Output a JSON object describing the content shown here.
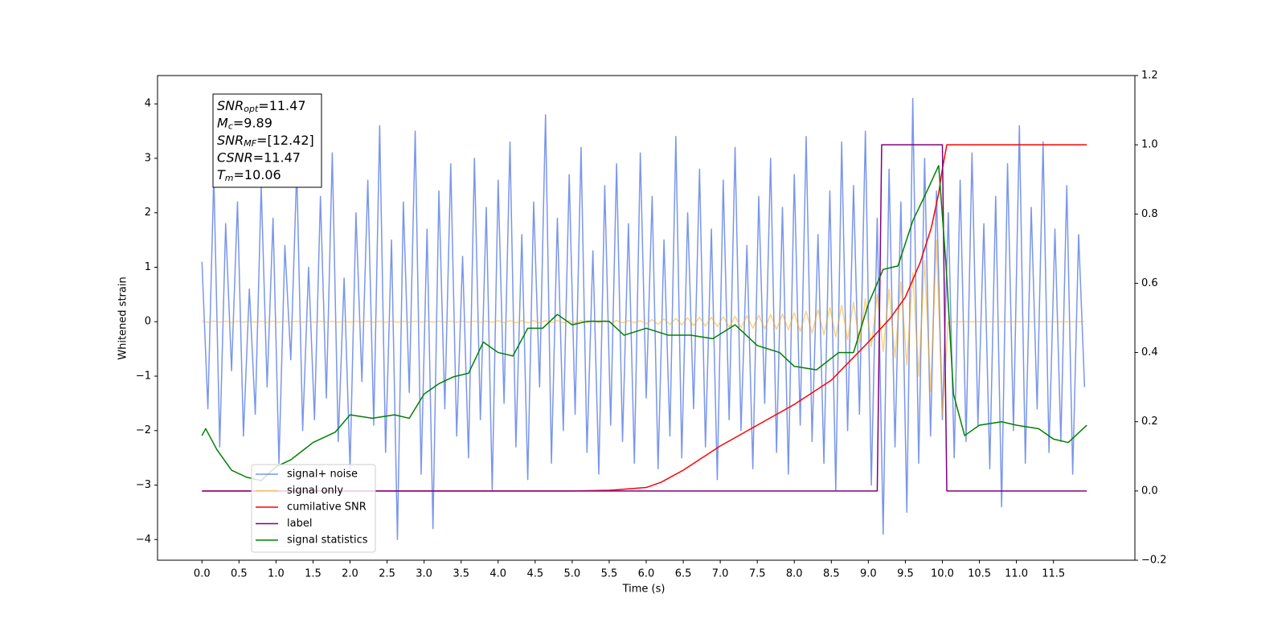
{
  "chart_data": {
    "type": "line",
    "xlabel": "Time (s)",
    "ylabel": "Whitened strain",
    "xlim": [
      -0.6,
      12.6
    ],
    "ylim": [
      -4.38,
      4.52
    ],
    "y2lim": [
      -0.2,
      1.2
    ],
    "xticks": [
      {
        "value": 0,
        "label": "0.0"
      },
      0.5,
      {
        "value": 1,
        "label": "1.0"
      },
      1.5,
      {
        "value": 2,
        "label": "2.0"
      },
      2.5,
      {
        "value": 3,
        "label": "3.0"
      },
      3.5,
      {
        "value": 4,
        "label": "4.0"
      },
      4.5,
      {
        "value": 5,
        "label": "5.0"
      },
      5.5,
      {
        "value": 6,
        "label": "6.0"
      },
      6.5,
      {
        "value": 7,
        "label": "7.0"
      },
      7.5,
      {
        "value": 8,
        "label": "8.0"
      },
      8.5,
      {
        "value": 9,
        "label": "9.0"
      },
      9.5,
      {
        "value": 10,
        "label": "10.0"
      },
      10.5,
      {
        "value": 11,
        "label": "11.0"
      },
      11.5
    ],
    "yticks": [
      {
        "value": -4,
        "label": "−4"
      },
      {
        "value": -3,
        "label": "−3"
      },
      {
        "value": -2,
        "label": "−2"
      },
      {
        "value": -1,
        "label": "−1"
      },
      0,
      1,
      2,
      3,
      4
    ],
    "y2ticks": [
      {
        "value": -0.2,
        "label": "−0.2"
      },
      {
        "value": 0,
        "label": "0.0"
      },
      0.2,
      0.4,
      0.6,
      0.8,
      {
        "value": 1,
        "label": "1.0"
      },
      1.2
    ],
    "legend": "lower left",
    "annotation": [
      {
        "main": "SNR",
        "sub": "opt",
        "text": "=11.47"
      },
      {
        "main": "M",
        "sub": "c",
        "text": "=9.89"
      },
      {
        "main": "SNR",
        "sub": "MF",
        "text": "=[12.42]"
      },
      {
        "main": "CSNR",
        "text": "=11.47"
      },
      {
        "main": "T",
        "sub": "m",
        "text": "=10.06"
      }
    ],
    "x": [
      0,
      0.08,
      0.16,
      0.24,
      0.32,
      0.4,
      0.48,
      0.56,
      0.64,
      0.72,
      0.8,
      0.88,
      0.96,
      1.04,
      1.12,
      1.2,
      1.28,
      1.36,
      1.44,
      1.52,
      1.6,
      1.68,
      1.76,
      1.84,
      1.92,
      2,
      2.08,
      2.16,
      2.24,
      2.32,
      2.4,
      2.48,
      2.56,
      2.64,
      2.72,
      2.8,
      2.88,
      2.96,
      3.04,
      3.12,
      3.2,
      3.28,
      3.36,
      3.44,
      3.52,
      3.6,
      3.68,
      3.76,
      3.84,
      3.92,
      4,
      4.08,
      4.16,
      4.24,
      4.32,
      4.4,
      4.48,
      4.56,
      4.64,
      4.72,
      4.8,
      4.88,
      4.96,
      5.04,
      5.12,
      5.2,
      5.28,
      5.36,
      5.44,
      5.52,
      5.6,
      5.68,
      5.76,
      5.84,
      5.92,
      6,
      6.08,
      6.16,
      6.24,
      6.32,
      6.4,
      6.48,
      6.56,
      6.64,
      6.72,
      6.8,
      6.88,
      6.96,
      7.04,
      7.12,
      7.2,
      7.28,
      7.36,
      7.44,
      7.52,
      7.6,
      7.68,
      7.76,
      7.84,
      7.92,
      8,
      8.08,
      8.16,
      8.24,
      8.32,
      8.4,
      8.48,
      8.56,
      8.64,
      8.72,
      8.8,
      8.88,
      8.96,
      9.04,
      9.12,
      9.2,
      9.28,
      9.36,
      9.44,
      9.52,
      9.6,
      9.68,
      9.76,
      9.84,
      9.92,
      10,
      10.08,
      10.16,
      10.24,
      10.32,
      10.4,
      10.48,
      10.56,
      10.64,
      10.72,
      10.8,
      10.88,
      10.96,
      11.04,
      11.12,
      11.2,
      11.28,
      11.36,
      11.44,
      11.52,
      11.6,
      11.68,
      11.76,
      11.84,
      11.92
    ],
    "series": [
      {
        "name": "signal+ noise",
        "color": "#4169e1",
        "opacity": 0.7,
        "values": [
          1.1,
          -1.6,
          2.7,
          -2.3,
          1.8,
          -0.9,
          2.2,
          -2.1,
          0.6,
          -1.7,
          2.5,
          -1.2,
          1.9,
          -2.6,
          1.4,
          -0.7,
          2.8,
          -2.0,
          1.0,
          -1.8,
          2.3,
          -1.4,
          3.1,
          -2.2,
          0.8,
          -2.7,
          2.0,
          -1.1,
          2.6,
          -1.9,
          3.6,
          -2.4,
          1.5,
          -4.0,
          2.2,
          -1.3,
          3.5,
          -2.8,
          1.7,
          -3.8,
          2.4,
          -1.6,
          2.9,
          -2.1,
          1.2,
          -2.5,
          3.0,
          -1.8,
          2.1,
          -3.1,
          2.6,
          -1.5,
          3.3,
          -2.3,
          1.6,
          -2.9,
          2.2,
          -1.2,
          3.8,
          -2.6,
          1.9,
          -2.0,
          2.7,
          -1.7,
          3.2,
          -2.4,
          1.3,
          -2.8,
          2.5,
          -1.9,
          2.9,
          -2.2,
          1.8,
          -2.6,
          3.1,
          -1.4,
          2.3,
          -2.7,
          1.5,
          -2.1,
          3.4,
          -2.5,
          2.0,
          -1.6,
          2.8,
          -2.3,
          1.7,
          -2.9,
          2.6,
          -1.8,
          3.2,
          -2.0,
          1.4,
          -2.7,
          2.3,
          -1.5,
          3.0,
          -2.4,
          2.1,
          -2.8,
          2.7,
          -1.9,
          3.4,
          -2.2,
          1.6,
          -2.6,
          2.4,
          -3.1,
          3.3,
          -2.0,
          2.5,
          -1.7,
          3.5,
          -3.0,
          1.9,
          -3.9,
          2.8,
          -2.3,
          2.2,
          -3.5,
          4.1,
          -2.6,
          3.0,
          -2.1,
          2.4,
          -1.8,
          2.0,
          -2.5,
          2.6,
          -2.2,
          3.1,
          -1.9,
          1.8,
          -2.7,
          2.3,
          -3.4,
          2.9,
          -2.0,
          3.6,
          -2.6,
          2.1,
          -1.6,
          3.3,
          -2.4,
          1.7,
          -2.2,
          2.5,
          -2.8,
          1.6,
          -1.2
        ]
      },
      {
        "name": "signal only",
        "color": "#ffa500",
        "opacity": 0.5,
        "values": [
          0.01,
          -0.01,
          0.01,
          -0.01,
          0.01,
          -0.01,
          0.01,
          -0.01,
          0.01,
          -0.01,
          0.01,
          -0.01,
          0.01,
          -0.01,
          0.01,
          -0.01,
          0.01,
          -0.01,
          0.01,
          -0.01,
          0.01,
          -0.01,
          0.01,
          -0.01,
          0.01,
          -0.01,
          0.01,
          -0.01,
          0.01,
          -0.01,
          0.01,
          -0.01,
          0.01,
          -0.01,
          0.01,
          -0.01,
          0.01,
          -0.01,
          0.01,
          -0.01,
          0.01,
          -0.01,
          0.01,
          -0.01,
          0.01,
          -0.01,
          0.01,
          -0.01,
          0.01,
          -0.01,
          0.02,
          -0.02,
          0.02,
          -0.02,
          0.02,
          -0.02,
          0.02,
          -0.02,
          0.02,
          -0.02,
          0.02,
          -0.02,
          0.02,
          -0.02,
          0.02,
          -0.02,
          0.02,
          -0.02,
          0.02,
          -0.02,
          0.02,
          -0.02,
          0.02,
          -0.02,
          0.02,
          -0.04,
          0.04,
          -0.05,
          0.05,
          -0.05,
          0.06,
          -0.06,
          0.07,
          -0.07,
          0.08,
          -0.08,
          0.08,
          -0.09,
          0.09,
          -0.1,
          0.1,
          -0.11,
          0.11,
          -0.12,
          0.12,
          -0.13,
          0.13,
          -0.14,
          0.14,
          -0.15,
          0.16,
          -0.18,
          0.19,
          -0.21,
          0.22,
          -0.24,
          0.26,
          -0.28,
          0.3,
          -0.33,
          0.36,
          -0.39,
          0.42,
          -0.46,
          0.5,
          -0.55,
          0.6,
          -0.66,
          0.73,
          -0.8,
          0.9,
          -1.0,
          1.12,
          -1.28,
          1.5,
          -1.7,
          0,
          0,
          0,
          0,
          0,
          0,
          0,
          0,
          0,
          0,
          0,
          0,
          0,
          0,
          0,
          0,
          0,
          0,
          0,
          0,
          0,
          0,
          0,
          0
        ]
      },
      {
        "name": "cumilative SNR",
        "color": "#ff0000",
        "axis": "y2",
        "x": [
          0,
          5,
          5.5,
          6,
          6.2,
          6.5,
          7,
          7.5,
          8,
          8.5,
          9,
          9.3,
          9.5,
          9.7,
          9.85,
          9.95,
          10.0,
          10.06,
          10.5,
          11,
          11.5,
          11.95
        ],
        "values": [
          0,
          0,
          0.002,
          0.01,
          0.025,
          0.06,
          0.13,
          0.19,
          0.25,
          0.32,
          0.43,
          0.5,
          0.56,
          0.66,
          0.76,
          0.86,
          0.93,
          1.0,
          1.0,
          1.0,
          1.0,
          1.0
        ]
      },
      {
        "name": "label",
        "color": "#800080",
        "axis": "y2",
        "x": [
          0,
          9.12,
          9.18,
          10.0,
          10.06,
          11.95
        ],
        "values": [
          0,
          0,
          1,
          1,
          0,
          0
        ]
      },
      {
        "name": "signal statistics",
        "color": "#008000",
        "axis": "y2",
        "x": [
          0,
          0.05,
          0.2,
          0.4,
          0.6,
          0.8,
          1.0,
          1.2,
          1.5,
          1.8,
          2.0,
          2.3,
          2.6,
          2.8,
          3.0,
          3.2,
          3.4,
          3.6,
          3.8,
          4.0,
          4.2,
          4.4,
          4.6,
          4.8,
          5.0,
          5.2,
          5.5,
          5.7,
          6.0,
          6.3,
          6.6,
          6.9,
          7.2,
          7.5,
          7.8,
          8.0,
          8.3,
          8.6,
          8.8,
          9.0,
          9.2,
          9.4,
          9.6,
          9.8,
          9.95,
          10.05,
          10.15,
          10.3,
          10.5,
          10.8,
          11.0,
          11.3,
          11.5,
          11.7,
          11.95
        ],
        "values": [
          0.16,
          0.18,
          0.12,
          0.06,
          0.04,
          0.03,
          0.07,
          0.09,
          0.14,
          0.17,
          0.22,
          0.21,
          0.22,
          0.21,
          0.28,
          0.31,
          0.33,
          0.34,
          0.43,
          0.4,
          0.39,
          0.47,
          0.47,
          0.51,
          0.48,
          0.49,
          0.49,
          0.45,
          0.47,
          0.45,
          0.45,
          0.44,
          0.48,
          0.42,
          0.4,
          0.36,
          0.35,
          0.4,
          0.4,
          0.54,
          0.64,
          0.65,
          0.78,
          0.87,
          0.94,
          0.65,
          0.28,
          0.16,
          0.19,
          0.2,
          0.19,
          0.18,
          0.15,
          0.14,
          0.19
        ]
      }
    ]
  }
}
